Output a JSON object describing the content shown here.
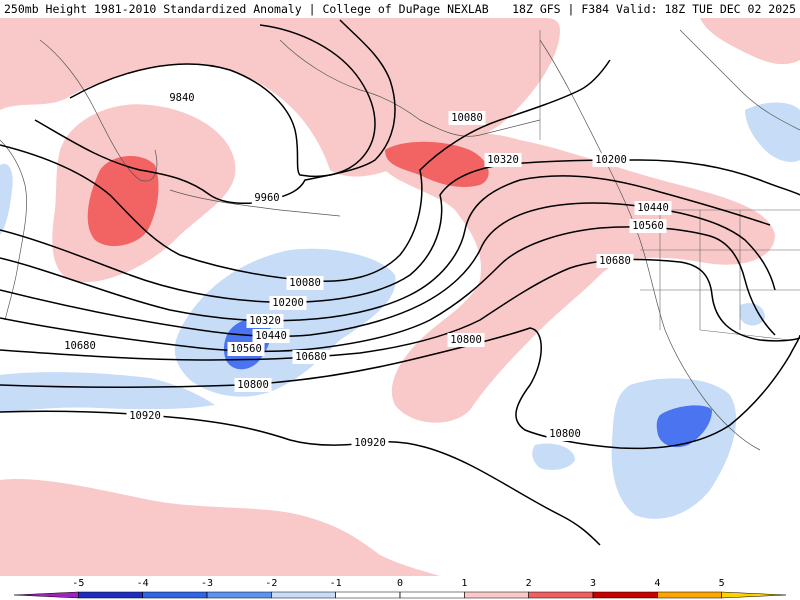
{
  "header": {
    "left": "250mb Height 1981-2010 Standardized Anomaly | College of DuPage NEXLAB",
    "right": "18Z GFS | F384 Valid: 18Z TUE DEC 02 2025"
  },
  "colors": {
    "light_pink": "#f9c9c9",
    "red": "#f26464",
    "light_blue": "#c6dcf7",
    "blue": "#4a74f0",
    "contour": "#000000"
  },
  "contour_labels": [
    {
      "text": "9840"
    },
    {
      "text": "9960"
    },
    {
      "text": "10080"
    },
    {
      "text": "10080"
    },
    {
      "text": "10200"
    },
    {
      "text": "10200"
    },
    {
      "text": "10320"
    },
    {
      "text": "10320"
    },
    {
      "text": "10440"
    },
    {
      "text": "10440"
    },
    {
      "text": "10560"
    },
    {
      "text": "10560"
    },
    {
      "text": "10680"
    },
    {
      "text": "10680"
    },
    {
      "text": "10680"
    },
    {
      "text": "10800"
    },
    {
      "text": "10800"
    },
    {
      "text": "10800"
    },
    {
      "text": "10920"
    },
    {
      "text": "10920"
    }
  ],
  "colorbar": {
    "ticks": [
      "-5",
      "-4",
      "-3",
      "-2",
      "-1",
      "0",
      "1",
      "2",
      "3",
      "4",
      "5"
    ],
    "colors": [
      "#a020c0",
      "#1e2dbf",
      "#2e66e6",
      "#5d93f0",
      "#c6dcf7",
      "#ffffff",
      "#ffffff",
      "#f9c9c9",
      "#f06060",
      "#c80000",
      "#ffa500",
      "#ffd000"
    ]
  }
}
